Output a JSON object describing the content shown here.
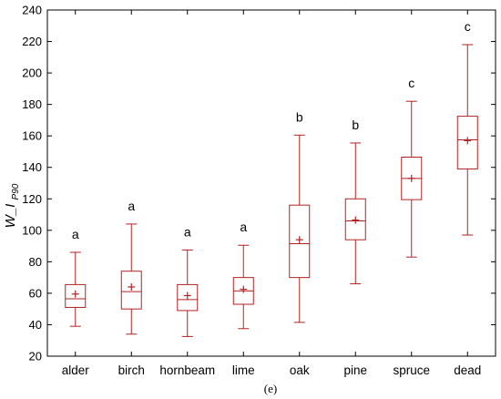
{
  "chart_data": {
    "type": "box",
    "ylabel_main": "W_I",
    "ylabel_sub": "P90",
    "caption": "(e)",
    "ylim": [
      20,
      240
    ],
    "yticks": [
      20,
      40,
      60,
      80,
      100,
      120,
      140,
      160,
      180,
      200,
      220,
      240
    ],
    "grid": false,
    "categories": [
      "alder",
      "birch",
      "hornbeam",
      "lime",
      "oak",
      "pine",
      "spruce",
      "dead"
    ],
    "groups": [
      "a",
      "a",
      "a",
      "a",
      "b",
      "b",
      "c",
      "c"
    ],
    "boxes": [
      {
        "min": 39,
        "q1": 51,
        "median": 56.5,
        "q3": 65.5,
        "max": 86,
        "mean": 59.5
      },
      {
        "min": 34,
        "q1": 50,
        "median": 61,
        "q3": 74,
        "max": 104,
        "mean": 64
      },
      {
        "min": 32.5,
        "q1": 49,
        "median": 56,
        "q3": 65.5,
        "max": 87.5,
        "mean": 58.5
      },
      {
        "min": 37.5,
        "q1": 53,
        "median": 61.5,
        "q3": 70,
        "max": 90.5,
        "mean": 62.5
      },
      {
        "min": 41.5,
        "q1": 70,
        "median": 91.5,
        "q3": 116,
        "max": 160.5,
        "mean": 94
      },
      {
        "min": 66,
        "q1": 94,
        "median": 106,
        "q3": 120,
        "max": 155.5,
        "mean": 106.5
      },
      {
        "min": 83,
        "q1": 119.5,
        "median": 133,
        "q3": 146.5,
        "max": 182,
        "mean": 133
      },
      {
        "min": 97,
        "q1": 139,
        "median": 157.5,
        "q3": 172.5,
        "max": 218,
        "mean": 157
      }
    ],
    "colors": {
      "box": "#b22222",
      "axis": "#000000"
    }
  }
}
